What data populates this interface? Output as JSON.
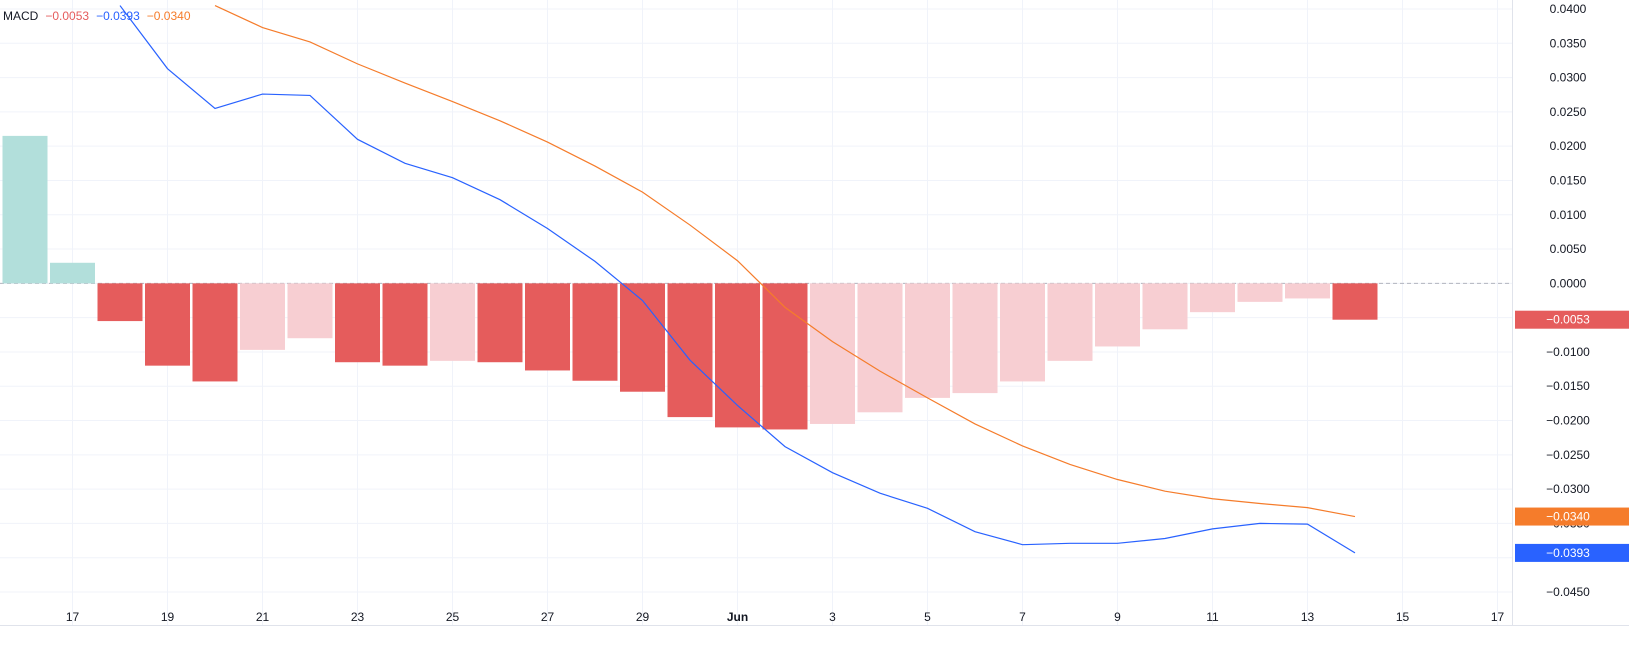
{
  "legend": {
    "name": "MACD",
    "hist_value": "−0.0053",
    "macd_value": "−0.0393",
    "signal_value": "−0.0340"
  },
  "colors": {
    "hist_pos_strong": "#b2dfdb",
    "hist_neg_strong": "#e55c5c",
    "hist_neg_weak": "#f7ced2",
    "macd_line": "#2962ff",
    "signal_line": "#f57c2b",
    "grid": "#f0f3fa",
    "zero_line": "#b2b5be"
  },
  "chart_data": {
    "type": "bar",
    "x_labels": [
      "17",
      "19",
      "21",
      "23",
      "25",
      "27",
      "29",
      "Jun",
      "3",
      "5",
      "7",
      "9",
      "11",
      "13",
      "15",
      "17"
    ],
    "y_ticks": [
      "0.0400",
      "0.0350",
      "0.0300",
      "0.0250",
      "0.0200",
      "0.0150",
      "0.0100",
      "0.0050",
      "0.0000",
      "−0.0050",
      "−0.0100",
      "−0.0150",
      "−0.0200",
      "−0.0250",
      "−0.0300",
      "−0.0350",
      "−0.0400",
      "−0.0450"
    ],
    "y_tick_values": [
      0.04,
      0.035,
      0.03,
      0.025,
      0.02,
      0.015,
      0.01,
      0.005,
      0,
      -0.005,
      -0.01,
      -0.015,
      -0.02,
      -0.025,
      -0.03,
      -0.035,
      -0.04,
      -0.045
    ],
    "ylim": [
      -0.045,
      0.04
    ],
    "series": [
      {
        "name": "Histogram",
        "kind": "histogram",
        "x": [
          16,
          17,
          18,
          19,
          20,
          21,
          22,
          23,
          24,
          25,
          26,
          27,
          28,
          29,
          30,
          31,
          32,
          33,
          34,
          35,
          36,
          37,
          38,
          39,
          40,
          41,
          42,
          43,
          44
        ],
        "values": [
          0.0215,
          0.003,
          -0.0055,
          -0.012,
          -0.0143,
          -0.0097,
          -0.008,
          -0.0115,
          -0.012,
          -0.0113,
          -0.0115,
          -0.0127,
          -0.0142,
          -0.0158,
          -0.0195,
          -0.021,
          -0.0213,
          -0.0205,
          -0.0188,
          -0.0167,
          -0.016,
          -0.0143,
          -0.0113,
          -0.0092,
          -0.0067,
          -0.0042,
          -0.0027,
          -0.0022,
          -0.0053
        ],
        "shade": [
          "strong",
          "strong",
          "strong",
          "strong",
          "strong",
          "weak",
          "weak",
          "strong",
          "strong",
          "weak",
          "strong",
          "strong",
          "strong",
          "strong",
          "strong",
          "strong",
          "strong",
          "weak",
          "weak",
          "weak",
          "weak",
          "weak",
          "weak",
          "weak",
          "weak",
          "weak",
          "weak",
          "weak",
          "strong"
        ]
      },
      {
        "name": "MACD",
        "kind": "line",
        "x": [
          18,
          19,
          20,
          21,
          22,
          23,
          24,
          25,
          26,
          27,
          28,
          29,
          30,
          31,
          32,
          33,
          34,
          35,
          36,
          37,
          38,
          39,
          40,
          41,
          42,
          43,
          44
        ],
        "values": [
          0.0405,
          0.0313,
          0.0255,
          0.0276,
          0.0274,
          0.021,
          0.0175,
          0.0154,
          0.0122,
          0.008,
          0.0032,
          -0.0025,
          -0.0112,
          -0.0178,
          -0.0238,
          -0.0276,
          -0.0306,
          -0.0328,
          -0.0362,
          -0.0381,
          -0.0379,
          -0.0379,
          -0.0372,
          -0.0358,
          -0.035,
          -0.0351,
          -0.0393
        ]
      },
      {
        "name": "Signal",
        "kind": "line",
        "x": [
          20,
          21,
          22,
          23,
          24,
          25,
          26,
          27,
          28,
          29,
          30,
          31,
          32,
          33,
          34,
          35,
          36,
          37,
          38,
          39,
          40,
          41,
          42,
          43,
          44
        ],
        "values": [
          0.0405,
          0.0373,
          0.0352,
          0.032,
          0.0292,
          0.0265,
          0.0237,
          0.0206,
          0.0171,
          0.0133,
          0.0085,
          0.0033,
          -0.0035,
          -0.0085,
          -0.0128,
          -0.0167,
          -0.0205,
          -0.0237,
          -0.0264,
          -0.0286,
          -0.0303,
          -0.0314,
          -0.0321,
          -0.0327,
          -0.034
        ]
      }
    ],
    "value_badges": [
      {
        "text": "−0.0053",
        "value": -0.0053,
        "color": "#e55c5c"
      },
      {
        "text": "−0.0340",
        "value": -0.034,
        "color": "#f57c2b"
      },
      {
        "text": "−0.0393",
        "value": -0.0393,
        "color": "#2962ff"
      }
    ],
    "grid": true
  }
}
